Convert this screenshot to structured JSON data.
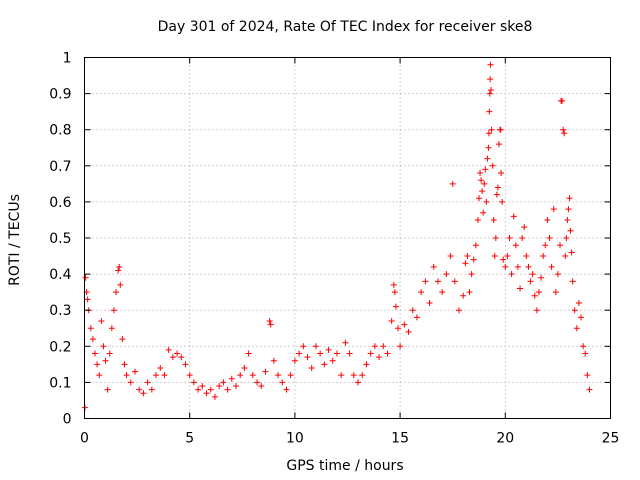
{
  "chart_data": {
    "type": "scatter",
    "title": "Day 301 of 2024, Rate Of TEC Index for receiver ske8",
    "xlabel": "GPS time / hours",
    "ylabel": "ROTI / TECUs",
    "xlim": [
      0,
      25
    ],
    "ylim": [
      0,
      1
    ],
    "xticks": [
      0,
      5,
      10,
      15,
      20,
      25
    ],
    "xtick_labels": [
      "0",
      "5",
      "10",
      "15",
      "20",
      "25"
    ],
    "yticks": [
      0,
      0.1,
      0.2,
      0.3,
      0.4,
      0.5,
      0.6,
      0.7,
      0.8,
      0.9,
      1
    ],
    "ytick_labels": [
      "0",
      "0.1",
      "0.2",
      "0.3",
      "0.4",
      "0.5",
      "0.6",
      "0.7",
      "0.8",
      "0.9",
      "1"
    ],
    "grid": true,
    "marker": "+",
    "color": "#ff0000",
    "series": [
      {
        "name": "ROTI",
        "points": [
          [
            0.02,
            0.03
          ],
          [
            0.05,
            0.39
          ],
          [
            0.1,
            0.35
          ],
          [
            0.15,
            0.33
          ],
          [
            0.2,
            0.3
          ],
          [
            0.3,
            0.25
          ],
          [
            0.4,
            0.22
          ],
          [
            0.5,
            0.18
          ],
          [
            0.6,
            0.15
          ],
          [
            0.7,
            0.12
          ],
          [
            0.8,
            0.27
          ],
          [
            0.9,
            0.2
          ],
          [
            1.0,
            0.16
          ],
          [
            1.1,
            0.08
          ],
          [
            1.2,
            0.18
          ],
          [
            1.3,
            0.25
          ],
          [
            1.4,
            0.3
          ],
          [
            1.5,
            0.35
          ],
          [
            1.6,
            0.41
          ],
          [
            1.65,
            0.42
          ],
          [
            1.7,
            0.37
          ],
          [
            1.8,
            0.22
          ],
          [
            1.9,
            0.15
          ],
          [
            2.0,
            0.12
          ],
          [
            2.2,
            0.1
          ],
          [
            2.4,
            0.13
          ],
          [
            2.6,
            0.08
          ],
          [
            2.8,
            0.07
          ],
          [
            3.0,
            0.1
          ],
          [
            3.2,
            0.08
          ],
          [
            3.4,
            0.12
          ],
          [
            3.6,
            0.14
          ],
          [
            3.8,
            0.12
          ],
          [
            4.0,
            0.19
          ],
          [
            4.2,
            0.17
          ],
          [
            4.4,
            0.18
          ],
          [
            4.6,
            0.17
          ],
          [
            4.8,
            0.15
          ],
          [
            5.0,
            0.12
          ],
          [
            5.2,
            0.1
          ],
          [
            5.4,
            0.08
          ],
          [
            5.6,
            0.09
          ],
          [
            5.8,
            0.07
          ],
          [
            6.0,
            0.08
          ],
          [
            6.2,
            0.06
          ],
          [
            6.4,
            0.09
          ],
          [
            6.6,
            0.1
          ],
          [
            6.8,
            0.08
          ],
          [
            7.0,
            0.11
          ],
          [
            7.2,
            0.09
          ],
          [
            7.4,
            0.12
          ],
          [
            7.6,
            0.14
          ],
          [
            7.8,
            0.18
          ],
          [
            8.0,
            0.12
          ],
          [
            8.2,
            0.1
          ],
          [
            8.4,
            0.09
          ],
          [
            8.6,
            0.13
          ],
          [
            8.8,
            0.27
          ],
          [
            8.85,
            0.26
          ],
          [
            9.0,
            0.16
          ],
          [
            9.2,
            0.12
          ],
          [
            9.4,
            0.1
          ],
          [
            9.6,
            0.08
          ],
          [
            9.8,
            0.12
          ],
          [
            10.0,
            0.16
          ],
          [
            10.2,
            0.18
          ],
          [
            10.4,
            0.2
          ],
          [
            10.6,
            0.17
          ],
          [
            10.8,
            0.14
          ],
          [
            11.0,
            0.2
          ],
          [
            11.2,
            0.18
          ],
          [
            11.4,
            0.15
          ],
          [
            11.6,
            0.19
          ],
          [
            11.8,
            0.16
          ],
          [
            12.0,
            0.18
          ],
          [
            12.2,
            0.12
          ],
          [
            12.4,
            0.21
          ],
          [
            12.6,
            0.18
          ],
          [
            12.8,
            0.12
          ],
          [
            13.0,
            0.1
          ],
          [
            13.2,
            0.12
          ],
          [
            13.4,
            0.15
          ],
          [
            13.6,
            0.18
          ],
          [
            13.8,
            0.2
          ],
          [
            14.0,
            0.17
          ],
          [
            14.2,
            0.2
          ],
          [
            14.4,
            0.18
          ],
          [
            14.6,
            0.27
          ],
          [
            14.7,
            0.37
          ],
          [
            14.75,
            0.35
          ],
          [
            14.8,
            0.31
          ],
          [
            14.9,
            0.25
          ],
          [
            15.0,
            0.2
          ],
          [
            15.2,
            0.26
          ],
          [
            15.4,
            0.24
          ],
          [
            15.6,
            0.3
          ],
          [
            15.8,
            0.28
          ],
          [
            16.0,
            0.35
          ],
          [
            16.2,
            0.38
          ],
          [
            16.4,
            0.32
          ],
          [
            16.6,
            0.42
          ],
          [
            16.8,
            0.38
          ],
          [
            17.0,
            0.35
          ],
          [
            17.2,
            0.4
          ],
          [
            17.4,
            0.45
          ],
          [
            17.5,
            0.65
          ],
          [
            17.6,
            0.38
          ],
          [
            17.8,
            0.3
          ],
          [
            18.0,
            0.34
          ],
          [
            18.1,
            0.43
          ],
          [
            18.2,
            0.45
          ],
          [
            18.3,
            0.35
          ],
          [
            18.4,
            0.4
          ],
          [
            18.5,
            0.44
          ],
          [
            18.6,
            0.48
          ],
          [
            18.7,
            0.55
          ],
          [
            18.75,
            0.61
          ],
          [
            18.8,
            0.68
          ],
          [
            18.85,
            0.66
          ],
          [
            18.9,
            0.63
          ],
          [
            18.95,
            0.57
          ],
          [
            19.0,
            0.65
          ],
          [
            19.05,
            0.69
          ],
          [
            19.1,
            0.6
          ],
          [
            19.15,
            0.72
          ],
          [
            19.2,
            0.75
          ],
          [
            19.22,
            0.79
          ],
          [
            19.24,
            0.85
          ],
          [
            19.26,
            0.9
          ],
          [
            19.28,
            0.94
          ],
          [
            19.3,
            0.98
          ],
          [
            19.32,
            0.91
          ],
          [
            19.35,
            0.8
          ],
          [
            19.4,
            0.7
          ],
          [
            19.45,
            0.55
          ],
          [
            19.5,
            0.45
          ],
          [
            19.55,
            0.5
          ],
          [
            19.6,
            0.62
          ],
          [
            19.65,
            0.64
          ],
          [
            19.7,
            0.76
          ],
          [
            19.75,
            0.8
          ],
          [
            19.78,
            0.8
          ],
          [
            19.8,
            0.68
          ],
          [
            19.85,
            0.6
          ],
          [
            19.9,
            0.44
          ],
          [
            20.0,
            0.42
          ],
          [
            20.1,
            0.45
          ],
          [
            20.2,
            0.5
          ],
          [
            20.3,
            0.4
          ],
          [
            20.4,
            0.56
          ],
          [
            20.5,
            0.48
          ],
          [
            20.6,
            0.42
          ],
          [
            20.7,
            0.36
          ],
          [
            20.8,
            0.5
          ],
          [
            20.9,
            0.53
          ],
          [
            21.0,
            0.45
          ],
          [
            21.1,
            0.42
          ],
          [
            21.2,
            0.38
          ],
          [
            21.3,
            0.4
          ],
          [
            21.4,
            0.34
          ],
          [
            21.5,
            0.3
          ],
          [
            21.6,
            0.35
          ],
          [
            21.7,
            0.39
          ],
          [
            21.8,
            0.45
          ],
          [
            21.9,
            0.48
          ],
          [
            22.0,
            0.55
          ],
          [
            22.1,
            0.5
          ],
          [
            22.2,
            0.42
          ],
          [
            22.3,
            0.58
          ],
          [
            22.4,
            0.35
          ],
          [
            22.5,
            0.4
          ],
          [
            22.6,
            0.48
          ],
          [
            22.65,
            0.88
          ],
          [
            22.7,
            0.88
          ],
          [
            22.75,
            0.8
          ],
          [
            22.8,
            0.79
          ],
          [
            22.85,
            0.45
          ],
          [
            22.9,
            0.5
          ],
          [
            22.95,
            0.55
          ],
          [
            23.0,
            0.58
          ],
          [
            23.05,
            0.61
          ],
          [
            23.1,
            0.52
          ],
          [
            23.15,
            0.46
          ],
          [
            23.2,
            0.38
          ],
          [
            23.3,
            0.3
          ],
          [
            23.4,
            0.25
          ],
          [
            23.5,
            0.32
          ],
          [
            23.6,
            0.28
          ],
          [
            23.7,
            0.2
          ],
          [
            23.8,
            0.18
          ],
          [
            23.9,
            0.12
          ],
          [
            24.0,
            0.08
          ]
        ]
      }
    ]
  }
}
